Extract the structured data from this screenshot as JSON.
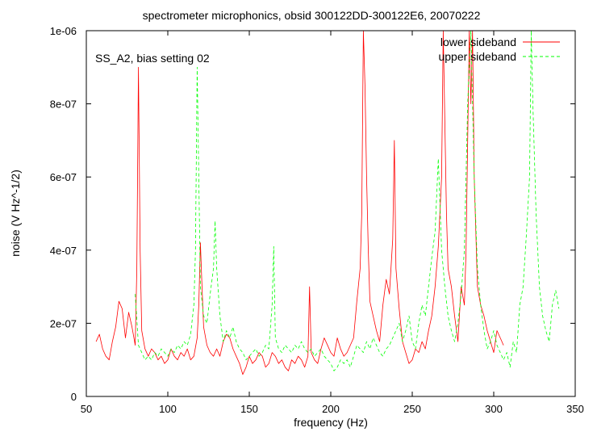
{
  "chart_data": {
    "type": "line",
    "title": "spectrometer microphonics, obsid 300122DD-300122E6, 20070222",
    "annotation": "SS_A2, bias setting 02",
    "xlabel": "frequency (Hz)",
    "ylabel": "noise (V Hz^-1/2)",
    "xlim": [
      50,
      350
    ],
    "ylim": [
      0,
      1e-06
    ],
    "xticks": [
      50,
      100,
      150,
      200,
      250,
      300,
      350
    ],
    "xtick_labels": [
      "50",
      "100",
      "150",
      "200",
      "250",
      "300",
      "350"
    ],
    "yticks": [
      0,
      2e-07,
      4e-07,
      6e-07,
      8e-07,
      1e-06
    ],
    "ytick_labels": [
      "0",
      "2e-07",
      "4e-07",
      "6e-07",
      "8e-07",
      "1e-06"
    ],
    "grid": false,
    "legend_position": "top-right",
    "series": [
      {
        "name": "lower sideband",
        "color": "#ff0000",
        "style": "solid",
        "x": [
          56,
          58,
          60,
          62,
          64,
          66,
          68,
          70,
          72,
          74,
          76,
          78,
          80,
          81,
          82,
          83,
          84,
          86,
          88,
          90,
          92,
          94,
          96,
          98,
          100,
          102,
          104,
          106,
          108,
          110,
          112,
          114,
          116,
          118,
          119,
          120,
          121,
          122,
          124,
          126,
          128,
          130,
          132,
          134,
          136,
          138,
          140,
          142,
          144,
          146,
          148,
          150,
          152,
          154,
          156,
          158,
          160,
          162,
          164,
          166,
          168,
          170,
          172,
          174,
          176,
          178,
          180,
          182,
          184,
          186,
          187,
          188,
          190,
          192,
          194,
          196,
          198,
          200,
          202,
          204,
          206,
          208,
          210,
          212,
          214,
          216,
          218,
          219,
          220,
          221,
          222,
          223,
          224,
          226,
          228,
          230,
          232,
          234,
          236,
          238,
          239,
          240,
          242,
          244,
          246,
          248,
          250,
          252,
          254,
          256,
          258,
          260,
          262,
          264,
          266,
          268,
          269,
          270,
          271,
          272,
          274,
          276,
          278,
          280,
          282,
          283,
          284,
          285,
          286,
          287,
          288,
          290,
          292,
          294,
          296,
          298,
          300,
          302,
          304,
          306
        ],
        "y": [
          1.5e-07,
          1.7e-07,
          1.3e-07,
          1.1e-07,
          1e-07,
          1.5e-07,
          1.9e-07,
          2.6e-07,
          2.4e-07,
          1.6e-07,
          2.3e-07,
          1.9e-07,
          1.4e-07,
          3.5e-07,
          9e-07,
          4e-07,
          1.8e-07,
          1.3e-07,
          1.1e-07,
          1.3e-07,
          1.2e-07,
          1e-07,
          1.1e-07,
          9e-08,
          1e-07,
          1.3e-07,
          1.1e-07,
          1e-07,
          1.2e-07,
          1.1e-07,
          1.3e-07,
          1e-07,
          1.1e-07,
          1.6e-07,
          2.5e-07,
          4.2e-07,
          3e-07,
          1.9e-07,
          1.4e-07,
          1.2e-07,
          1.1e-07,
          1.3e-07,
          1.1e-07,
          1.5e-07,
          1.7e-07,
          1.6e-07,
          1.3e-07,
          1.1e-07,
          9e-08,
          6e-08,
          8e-08,
          1.1e-07,
          9e-08,
          1e-07,
          1.2e-07,
          1.1e-07,
          8e-08,
          9e-08,
          1.2e-07,
          1.1e-07,
          9e-08,
          1e-07,
          8e-08,
          7e-08,
          1e-07,
          9e-08,
          1.1e-07,
          1e-07,
          8e-08,
          1.1e-07,
          3e-07,
          1.2e-07,
          1e-07,
          9e-08,
          1.3e-07,
          1.6e-07,
          1.4e-07,
          1.2e-07,
          1.1e-07,
          1.6e-07,
          1.3e-07,
          1.1e-07,
          1.2e-07,
          1.4e-07,
          1.6e-07,
          2.6e-07,
          3.5e-07,
          5e-07,
          1e-06,
          8.5e-07,
          6e-07,
          4e-07,
          2.6e-07,
          2.2e-07,
          1.8e-07,
          1.5e-07,
          2.5e-07,
          3.2e-07,
          2.8e-07,
          4.3e-07,
          7e-07,
          3.5e-07,
          2.4e-07,
          1.5e-07,
          1.2e-07,
          9e-08,
          1e-07,
          1.3e-07,
          1.2e-07,
          1.5e-07,
          1.3e-07,
          1.8e-07,
          2.2e-07,
          3e-07,
          4.1e-07,
          6e-07,
          1e-06,
          7.5e-07,
          5e-07,
          3.5e-07,
          3e-07,
          2.2e-07,
          1.5e-07,
          3e-07,
          2.5e-07,
          4e-07,
          7e-07,
          1e-06,
          8e-07,
          1e-06,
          6e-07,
          3e-07,
          2.5e-07,
          2.2e-07,
          1.8e-07,
          1.5e-07,
          1.2e-07,
          1.8e-07,
          1.6e-07,
          1.4e-07
        ]
      },
      {
        "name": "upper sideband",
        "color": "#00ff00",
        "style": "dashed",
        "x": [
          80,
          82,
          84,
          86,
          88,
          90,
          92,
          94,
          96,
          98,
          100,
          102,
          104,
          106,
          108,
          110,
          112,
          114,
          116,
          117,
          118,
          119,
          120,
          122,
          124,
          126,
          128,
          129,
          130,
          132,
          134,
          136,
          138,
          140,
          142,
          144,
          146,
          148,
          150,
          152,
          154,
          156,
          158,
          160,
          162,
          164,
          165,
          166,
          168,
          170,
          172,
          174,
          176,
          178,
          180,
          182,
          184,
          186,
          188,
          190,
          192,
          194,
          196,
          198,
          200,
          202,
          204,
          206,
          208,
          210,
          212,
          214,
          216,
          218,
          220,
          222,
          224,
          226,
          228,
          230,
          232,
          234,
          236,
          238,
          240,
          242,
          244,
          246,
          248,
          250,
          252,
          254,
          256,
          258,
          260,
          262,
          264,
          266,
          268,
          270,
          272,
          274,
          276,
          278,
          280,
          282,
          284,
          286,
          288,
          290,
          292,
          294,
          296,
          298,
          300,
          302,
          304,
          306,
          308,
          310,
          312,
          314,
          316,
          318,
          320,
          322,
          323,
          324,
          326,
          328,
          330,
          332,
          334,
          336,
          338,
          340
        ],
        "y": [
          2.8e-07,
          1.4e-07,
          1.2e-07,
          1e-07,
          1.1e-07,
          1e-07,
          1.2e-07,
          1.1e-07,
          1.3e-07,
          1.2e-07,
          1.1e-07,
          1.3e-07,
          1.2e-07,
          1.4e-07,
          1.3e-07,
          1.5e-07,
          1.4e-07,
          1.7e-07,
          2.5e-07,
          4e-07,
          9e-07,
          6e-07,
          3e-07,
          2.2e-07,
          2e-07,
          2.8e-07,
          3.5e-07,
          4.8e-07,
          3.5e-07,
          2.2e-07,
          1.5e-07,
          1.8e-07,
          1.6e-07,
          1.9e-07,
          1.5e-07,
          1.3e-07,
          1.2e-07,
          1e-07,
          1.1e-07,
          1.2e-07,
          1.3e-07,
          1.1e-07,
          1.2e-07,
          1.4e-07,
          1.3e-07,
          2.5e-07,
          4.1e-07,
          1.6e-07,
          1.3e-07,
          1.2e-07,
          1.4e-07,
          1.3e-07,
          1.2e-07,
          1.4e-07,
          1.3e-07,
          1.5e-07,
          1.3e-07,
          1.2e-07,
          1.3e-07,
          1.1e-07,
          1.2e-07,
          1.3e-07,
          1.1e-07,
          1e-07,
          9e-08,
          7e-08,
          8e-08,
          1e-07,
          9e-08,
          1e-07,
          8e-08,
          1.1e-07,
          1.4e-07,
          1.3e-07,
          1.2e-07,
          1.5e-07,
          1.3e-07,
          1.6e-07,
          1.4e-07,
          1.2e-07,
          1.1e-07,
          1.3e-07,
          1.4e-07,
          1.6e-07,
          1.8e-07,
          2e-07,
          1.5e-07,
          1.8e-07,
          2.2e-07,
          1.5e-07,
          1.3e-07,
          2e-07,
          2.5e-07,
          2.2e-07,
          3e-07,
          3.8e-07,
          4.5e-07,
          6.5e-07,
          4e-07,
          3e-07,
          2.2e-07,
          1.8e-07,
          1.5e-07,
          2e-07,
          2.8e-07,
          4e-07,
          8e-07,
          1e-06,
          6e-07,
          3.5e-07,
          2.5e-07,
          1.8e-07,
          1.3e-07,
          1.5e-07,
          1.8e-07,
          1.4e-07,
          1.2e-07,
          1e-07,
          1.2e-07,
          8e-08,
          1.5e-07,
          1.2e-07,
          2.5e-07,
          3e-07,
          4.4e-07,
          6e-07,
          1e-06,
          8e-07,
          5e-07,
          3e-07,
          2.2e-07,
          1.8e-07,
          1.5e-07,
          2.5e-07,
          2.9e-07,
          2.4e-07
        ]
      }
    ]
  }
}
